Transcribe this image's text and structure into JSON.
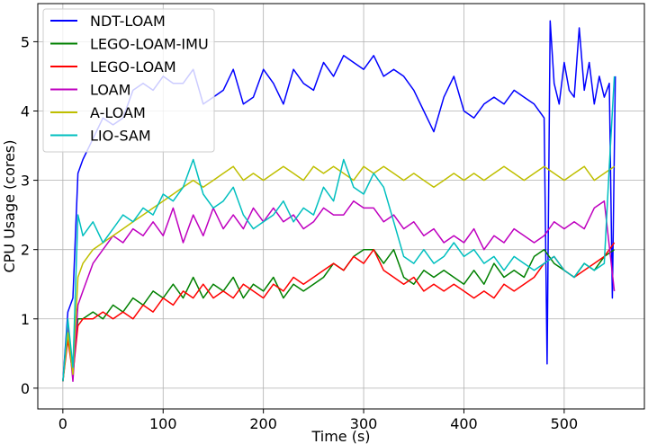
{
  "chart_data": {
    "type": "line",
    "xlabel": "Time (s)",
    "ylabel": "CPU Usage (cores)",
    "xlim": [
      -25,
      580
    ],
    "ylim": [
      -0.3,
      5.55
    ],
    "xticks": [
      0,
      100,
      200,
      300,
      400,
      500
    ],
    "yticks": [
      0,
      1,
      2,
      3,
      4,
      5
    ],
    "grid": true,
    "legend_position": "top-left",
    "series": [
      {
        "name": "NDT-LOAM",
        "color": "#0000ff",
        "x": [
          0,
          5,
          10,
          15,
          20,
          30,
          40,
          50,
          60,
          70,
          80,
          90,
          100,
          110,
          120,
          130,
          140,
          150,
          160,
          170,
          180,
          190,
          200,
          210,
          220,
          230,
          240,
          250,
          260,
          270,
          280,
          290,
          300,
          310,
          320,
          330,
          340,
          350,
          360,
          370,
          380,
          390,
          400,
          410,
          420,
          430,
          440,
          450,
          460,
          470,
          480,
          483,
          486,
          490,
          495,
          500,
          505,
          510,
          515,
          520,
          525,
          530,
          535,
          540,
          545,
          548,
          551
        ],
        "y": [
          0.1,
          1.1,
          1.3,
          3.1,
          3.3,
          3.6,
          3.9,
          3.8,
          3.9,
          4.3,
          4.4,
          4.3,
          4.5,
          4.4,
          4.4,
          4.6,
          4.1,
          4.2,
          4.3,
          4.6,
          4.1,
          4.2,
          4.6,
          4.4,
          4.1,
          4.6,
          4.4,
          4.3,
          4.7,
          4.5,
          4.8,
          4.7,
          4.6,
          4.8,
          4.5,
          4.6,
          4.5,
          4.3,
          4.0,
          3.7,
          4.2,
          4.5,
          4.0,
          3.9,
          4.1,
          4.2,
          4.1,
          4.3,
          4.2,
          4.1,
          3.9,
          0.35,
          5.3,
          4.4,
          4.1,
          4.7,
          4.3,
          4.2,
          5.2,
          4.3,
          4.7,
          4.1,
          4.5,
          4.2,
          4.4,
          1.3,
          4.5
        ]
      },
      {
        "name": "LEGO-LOAM-IMU",
        "color": "#008000",
        "x": [
          0,
          5,
          10,
          15,
          20,
          30,
          40,
          50,
          60,
          70,
          80,
          90,
          100,
          110,
          120,
          130,
          140,
          150,
          160,
          170,
          180,
          190,
          200,
          210,
          220,
          230,
          240,
          250,
          260,
          270,
          280,
          290,
          300,
          310,
          320,
          330,
          340,
          350,
          360,
          370,
          380,
          390,
          400,
          410,
          420,
          430,
          440,
          450,
          460,
          470,
          480,
          490,
          500,
          510,
          520,
          530,
          540,
          550
        ],
        "y": [
          0.1,
          0.8,
          0.3,
          1.0,
          1.0,
          1.1,
          1.0,
          1.2,
          1.1,
          1.3,
          1.2,
          1.4,
          1.3,
          1.5,
          1.3,
          1.6,
          1.3,
          1.5,
          1.4,
          1.6,
          1.3,
          1.5,
          1.4,
          1.6,
          1.3,
          1.5,
          1.4,
          1.5,
          1.6,
          1.8,
          1.7,
          1.9,
          2.0,
          2.0,
          1.8,
          2.0,
          1.6,
          1.5,
          1.7,
          1.6,
          1.7,
          1.6,
          1.5,
          1.7,
          1.5,
          1.8,
          1.6,
          1.7,
          1.6,
          1.9,
          2.0,
          1.8,
          1.7,
          1.6,
          1.8,
          1.7,
          1.9,
          2.0
        ]
      },
      {
        "name": "LEGO-LOAM",
        "color": "#ff0000",
        "x": [
          0,
          5,
          10,
          15,
          20,
          30,
          40,
          50,
          60,
          70,
          80,
          90,
          100,
          110,
          120,
          130,
          140,
          150,
          160,
          170,
          180,
          190,
          200,
          210,
          220,
          230,
          240,
          250,
          260,
          270,
          280,
          290,
          300,
          310,
          320,
          330,
          340,
          350,
          360,
          370,
          380,
          390,
          400,
          410,
          420,
          430,
          440,
          450,
          460,
          470,
          480,
          490,
          500,
          510,
          520,
          530,
          540,
          550
        ],
        "y": [
          0.1,
          0.7,
          0.2,
          0.9,
          1.0,
          1.0,
          1.1,
          1.0,
          1.1,
          1.0,
          1.2,
          1.1,
          1.3,
          1.2,
          1.4,
          1.3,
          1.5,
          1.3,
          1.4,
          1.3,
          1.5,
          1.4,
          1.3,
          1.5,
          1.4,
          1.6,
          1.5,
          1.6,
          1.7,
          1.8,
          1.7,
          1.9,
          1.8,
          2.0,
          1.7,
          1.6,
          1.5,
          1.6,
          1.4,
          1.5,
          1.4,
          1.5,
          1.4,
          1.3,
          1.4,
          1.3,
          1.5,
          1.4,
          1.5,
          1.6,
          1.8,
          1.9,
          1.7,
          1.6,
          1.7,
          1.8,
          1.9,
          2.1
        ]
      },
      {
        "name": "LOAM",
        "color": "#bf00bf",
        "x": [
          0,
          5,
          10,
          15,
          20,
          30,
          40,
          50,
          60,
          70,
          80,
          90,
          100,
          110,
          120,
          130,
          140,
          150,
          160,
          170,
          180,
          190,
          200,
          210,
          220,
          230,
          240,
          250,
          260,
          270,
          280,
          290,
          300,
          310,
          320,
          330,
          340,
          350,
          360,
          370,
          380,
          390,
          400,
          410,
          420,
          430,
          440,
          450,
          460,
          470,
          480,
          490,
          500,
          510,
          520,
          530,
          540,
          550
        ],
        "y": [
          0.1,
          0.9,
          0.1,
          1.2,
          1.4,
          1.8,
          2.0,
          2.2,
          2.1,
          2.3,
          2.2,
          2.4,
          2.2,
          2.6,
          2.1,
          2.5,
          2.2,
          2.6,
          2.3,
          2.5,
          2.3,
          2.6,
          2.4,
          2.6,
          2.4,
          2.5,
          2.3,
          2.4,
          2.6,
          2.5,
          2.5,
          2.7,
          2.6,
          2.6,
          2.4,
          2.5,
          2.3,
          2.4,
          2.2,
          2.3,
          2.1,
          2.2,
          2.1,
          2.3,
          2.0,
          2.2,
          2.1,
          2.3,
          2.2,
          2.1,
          2.2,
          2.4,
          2.3,
          2.4,
          2.3,
          2.6,
          2.7,
          1.4
        ]
      },
      {
        "name": "A-LOAM",
        "color": "#bfbf00",
        "x": [
          0,
          5,
          10,
          15,
          20,
          30,
          40,
          50,
          60,
          70,
          80,
          90,
          100,
          110,
          120,
          130,
          140,
          150,
          160,
          170,
          180,
          190,
          200,
          210,
          220,
          230,
          240,
          250,
          260,
          270,
          280,
          290,
          300,
          310,
          320,
          330,
          340,
          350,
          360,
          370,
          380,
          390,
          400,
          410,
          420,
          430,
          440,
          450,
          460,
          470,
          480,
          490,
          500,
          510,
          520,
          530,
          540,
          550
        ],
        "y": [
          0.1,
          0.8,
          0.2,
          1.6,
          1.8,
          2.0,
          2.1,
          2.2,
          2.3,
          2.4,
          2.5,
          2.6,
          2.7,
          2.8,
          2.9,
          3.0,
          2.9,
          3.0,
          3.1,
          3.2,
          3.0,
          3.1,
          3.0,
          3.1,
          3.2,
          3.1,
          3.0,
          3.2,
          3.1,
          3.2,
          3.1,
          3.0,
          3.2,
          3.1,
          3.2,
          3.1,
          3.0,
          3.1,
          3.0,
          2.9,
          3.0,
          3.1,
          3.0,
          3.1,
          3.0,
          3.1,
          3.2,
          3.1,
          3.0,
          3.1,
          3.2,
          3.1,
          3.0,
          3.1,
          3.2,
          3.0,
          3.1,
          3.2
        ]
      },
      {
        "name": "LIO-SAM",
        "color": "#00bfbf",
        "x": [
          0,
          5,
          10,
          15,
          20,
          30,
          40,
          50,
          60,
          70,
          80,
          90,
          100,
          110,
          120,
          130,
          140,
          150,
          160,
          170,
          180,
          190,
          200,
          210,
          220,
          230,
          240,
          250,
          260,
          270,
          280,
          290,
          300,
          310,
          320,
          330,
          340,
          350,
          360,
          370,
          380,
          390,
          400,
          410,
          420,
          430,
          440,
          450,
          460,
          470,
          480,
          490,
          500,
          510,
          520,
          530,
          540,
          545,
          550
        ],
        "y": [
          0.1,
          1.0,
          0.3,
          2.5,
          2.2,
          2.4,
          2.1,
          2.3,
          2.5,
          2.4,
          2.6,
          2.5,
          2.8,
          2.7,
          2.9,
          3.3,
          2.8,
          2.6,
          2.7,
          2.9,
          2.5,
          2.3,
          2.4,
          2.5,
          2.7,
          2.4,
          2.6,
          2.5,
          2.9,
          2.7,
          3.3,
          2.9,
          2.8,
          3.1,
          2.9,
          2.4,
          1.9,
          1.8,
          2.0,
          1.8,
          1.9,
          2.1,
          1.9,
          2.0,
          1.8,
          1.9,
          1.7,
          1.9,
          1.8,
          1.7,
          1.8,
          1.9,
          1.7,
          1.6,
          1.8,
          1.7,
          1.8,
          3.2,
          4.5
        ]
      }
    ]
  }
}
